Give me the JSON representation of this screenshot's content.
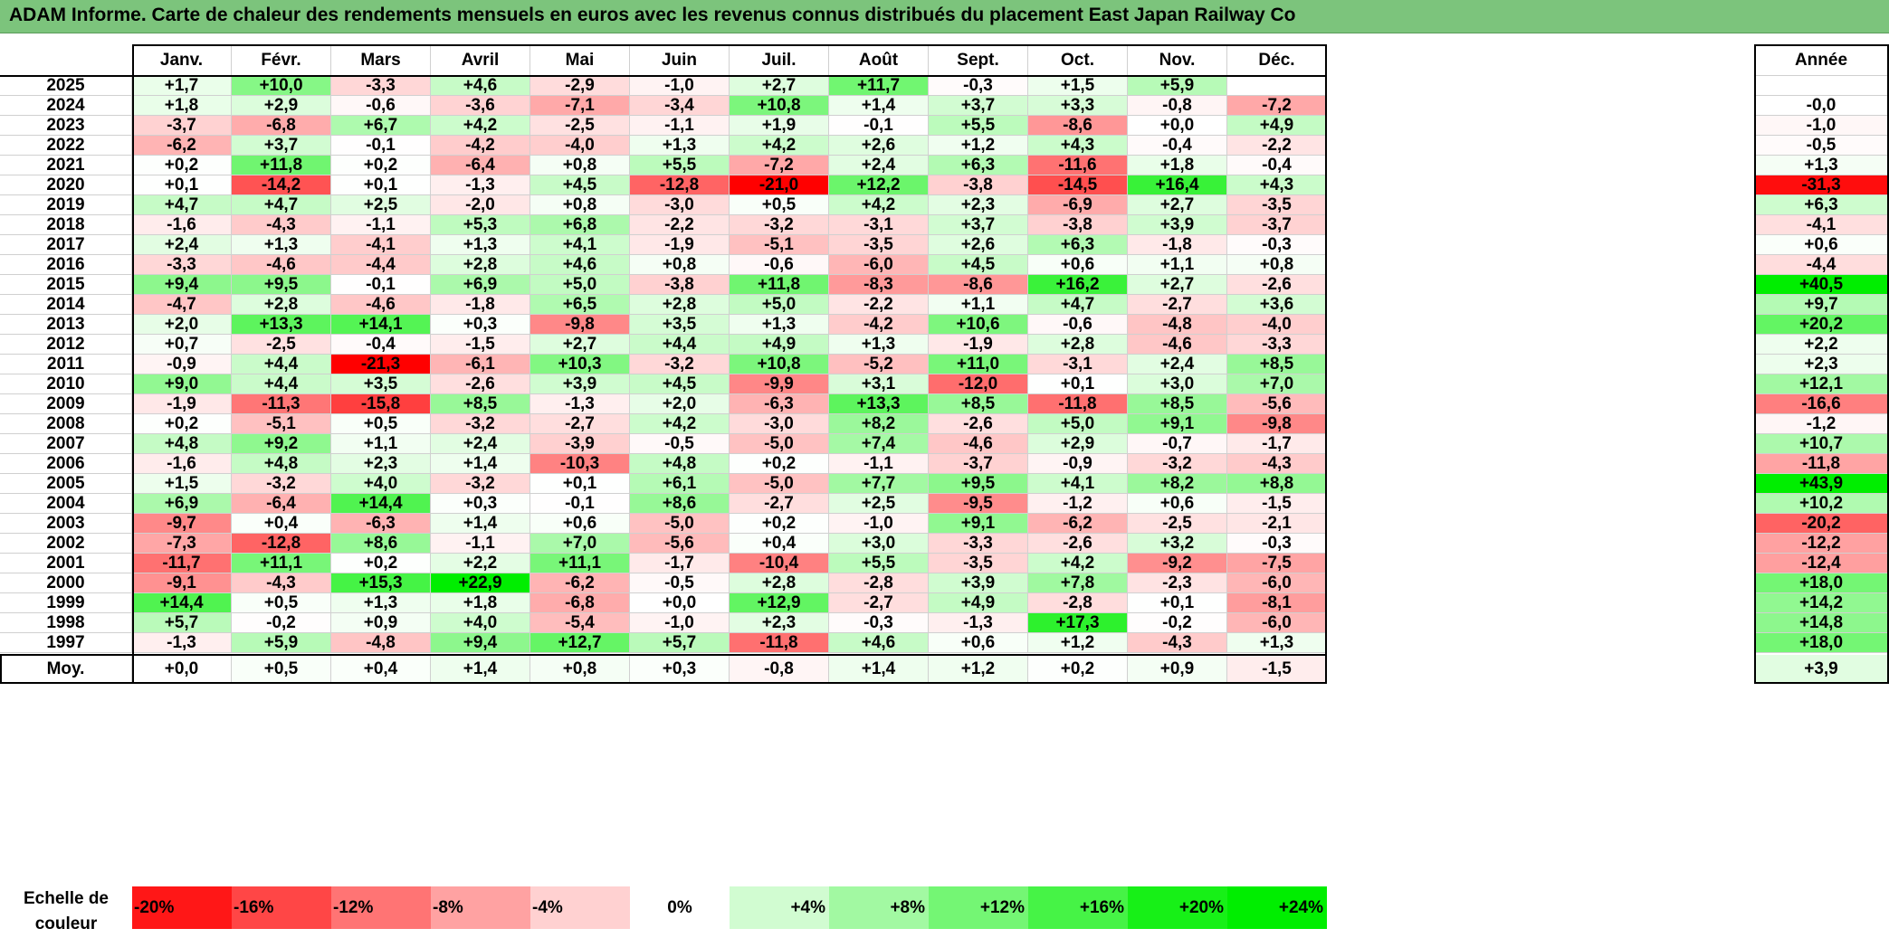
{
  "title": "ADAM Informe. Carte de chaleur des rendements mensuels en euros avec les revenus connus distribués du placement East Japan Railway Co",
  "chart_data": {
    "type": "heatmap",
    "columns": [
      "Janv.",
      "Févr.",
      "Mars",
      "Avril",
      "Mai",
      "Juin",
      "Juil.",
      "Août",
      "Sept.",
      "Oct.",
      "Nov.",
      "Déc."
    ],
    "annual_header": "Année",
    "rows": [
      {
        "year": "2025",
        "values": [
          "+1,7",
          "+10,0",
          "-3,3",
          "+4,6",
          "-2,9",
          "-1,0",
          "+2,7",
          "+11,7",
          "-0,3",
          "+1,5",
          "+5,9",
          ""
        ],
        "annual": ""
      },
      {
        "year": "2024",
        "values": [
          "+1,8",
          "+2,9",
          "-0,6",
          "-3,6",
          "-7,1",
          "-3,4",
          "+10,8",
          "+1,4",
          "+3,7",
          "+3,3",
          "-0,8",
          "-7,2"
        ],
        "annual": "-0,0"
      },
      {
        "year": "2023",
        "values": [
          "-3,7",
          "-6,8",
          "+6,7",
          "+4,2",
          "-2,5",
          "-1,1",
          "+1,9",
          "-0,1",
          "+5,5",
          "-8,6",
          "+0,0",
          "+4,9"
        ],
        "annual": "-1,0"
      },
      {
        "year": "2022",
        "values": [
          "-6,2",
          "+3,7",
          "-0,1",
          "-4,2",
          "-4,0",
          "+1,3",
          "+4,2",
          "+2,6",
          "+1,2",
          "+4,3",
          "-0,4",
          "-2,2"
        ],
        "annual": "-0,5"
      },
      {
        "year": "2021",
        "values": [
          "+0,2",
          "+11,8",
          "+0,2",
          "-6,4",
          "+0,8",
          "+5,5",
          "-7,2",
          "+2,4",
          "+6,3",
          "-11,6",
          "+1,8",
          "-0,4"
        ],
        "annual": "+1,3"
      },
      {
        "year": "2020",
        "values": [
          "+0,1",
          "-14,2",
          "+0,1",
          "-1,3",
          "+4,5",
          "-12,8",
          "-21,0",
          "+12,2",
          "-3,8",
          "-14,5",
          "+16,4",
          "+4,3"
        ],
        "annual": "-31,3"
      },
      {
        "year": "2019",
        "values": [
          "+4,7",
          "+4,7",
          "+2,5",
          "-2,0",
          "+0,8",
          "-3,0",
          "+0,5",
          "+4,2",
          "+2,3",
          "-6,9",
          "+2,7",
          "-3,5"
        ],
        "annual": "+6,3"
      },
      {
        "year": "2018",
        "values": [
          "-1,6",
          "-4,3",
          "-1,1",
          "+5,3",
          "+6,8",
          "-2,2",
          "-3,2",
          "-3,1",
          "+3,7",
          "-3,8",
          "+3,9",
          "-3,7"
        ],
        "annual": "-4,1"
      },
      {
        "year": "2017",
        "values": [
          "+2,4",
          "+1,3",
          "-4,1",
          "+1,3",
          "+4,1",
          "-1,9",
          "-5,1",
          "-3,5",
          "+2,6",
          "+6,3",
          "-1,8",
          "-0,3"
        ],
        "annual": "+0,6"
      },
      {
        "year": "2016",
        "values": [
          "-3,3",
          "-4,6",
          "-4,4",
          "+2,8",
          "+4,6",
          "+0,8",
          "-0,6",
          "-6,0",
          "+4,5",
          "+0,6",
          "+1,1",
          "+0,8"
        ],
        "annual": "-4,4"
      },
      {
        "year": "2015",
        "values": [
          "+9,4",
          "+9,5",
          "-0,1",
          "+6,9",
          "+5,0",
          "-3,8",
          "+11,8",
          "-8,3",
          "-8,6",
          "+16,2",
          "+2,7",
          "-2,6"
        ],
        "annual": "+40,5"
      },
      {
        "year": "2014",
        "values": [
          "-4,7",
          "+2,8",
          "-4,6",
          "-1,8",
          "+6,5",
          "+2,8",
          "+5,0",
          "-2,2",
          "+1,1",
          "+4,7",
          "-2,7",
          "+3,6"
        ],
        "annual": "+9,7"
      },
      {
        "year": "2013",
        "values": [
          "+2,0",
          "+13,3",
          "+14,1",
          "+0,3",
          "-9,8",
          "+3,5",
          "+1,3",
          "-4,2",
          "+10,6",
          "-0,6",
          "-4,8",
          "-4,0"
        ],
        "annual": "+20,2"
      },
      {
        "year": "2012",
        "values": [
          "+0,7",
          "-2,5",
          "-0,4",
          "-1,5",
          "+2,7",
          "+4,4",
          "+4,9",
          "+1,3",
          "-1,9",
          "+2,8",
          "-4,6",
          "-3,3"
        ],
        "annual": "+2,2"
      },
      {
        "year": "2011",
        "values": [
          "-0,9",
          "+4,4",
          "-21,3",
          "-6,1",
          "+10,3",
          "-3,2",
          "+10,8",
          "-5,2",
          "+11,0",
          "-3,1",
          "+2,4",
          "+8,5"
        ],
        "annual": "+2,3"
      },
      {
        "year": "2010",
        "values": [
          "+9,0",
          "+4,4",
          "+3,5",
          "-2,6",
          "+3,9",
          "+4,5",
          "-9,9",
          "+3,1",
          "-12,0",
          "+0,1",
          "+3,0",
          "+7,0"
        ],
        "annual": "+12,1"
      },
      {
        "year": "2009",
        "values": [
          "-1,9",
          "-11,3",
          "-15,8",
          "+8,5",
          "-1,3",
          "+2,0",
          "-6,3",
          "+13,3",
          "+8,5",
          "-11,8",
          "+8,5",
          "-5,6"
        ],
        "annual": "-16,6"
      },
      {
        "year": "2008",
        "values": [
          "+0,2",
          "-5,1",
          "+0,5",
          "-3,2",
          "-2,7",
          "+4,2",
          "-3,0",
          "+8,2",
          "-2,6",
          "+5,0",
          "+9,1",
          "-9,8"
        ],
        "annual": "-1,2"
      },
      {
        "year": "2007",
        "values": [
          "+4,8",
          "+9,2",
          "+1,1",
          "+2,4",
          "-3,9",
          "-0,5",
          "-5,0",
          "+7,4",
          "-4,6",
          "+2,9",
          "-0,7",
          "-1,7"
        ],
        "annual": "+10,7"
      },
      {
        "year": "2006",
        "values": [
          "-1,6",
          "+4,8",
          "+2,3",
          "+1,4",
          "-10,3",
          "+4,8",
          "+0,2",
          "-1,1",
          "-3,7",
          "-0,9",
          "-3,2",
          "-4,3"
        ],
        "annual": "-11,8"
      },
      {
        "year": "2005",
        "values": [
          "+1,5",
          "-3,2",
          "+4,0",
          "-3,2",
          "+0,1",
          "+6,1",
          "-5,0",
          "+7,7",
          "+9,5",
          "+4,1",
          "+8,2",
          "+8,8"
        ],
        "annual": "+43,9"
      },
      {
        "year": "2004",
        "values": [
          "+6,9",
          "-6,4",
          "+14,4",
          "+0,3",
          "-0,1",
          "+8,6",
          "-2,7",
          "+2,5",
          "-9,5",
          "-1,2",
          "+0,6",
          "-1,5"
        ],
        "annual": "+10,2"
      },
      {
        "year": "2003",
        "values": [
          "-9,7",
          "+0,4",
          "-6,3",
          "+1,4",
          "+0,6",
          "-5,0",
          "+0,2",
          "-1,0",
          "+9,1",
          "-6,2",
          "-2,5",
          "-2,1"
        ],
        "annual": "-20,2"
      },
      {
        "year": "2002",
        "values": [
          "-7,3",
          "-12,8",
          "+8,6",
          "-1,1",
          "+7,0",
          "-5,6",
          "+0,4",
          "+3,0",
          "-3,3",
          "-2,6",
          "+3,2",
          "-0,3"
        ],
        "annual": "-12,2"
      },
      {
        "year": "2001",
        "values": [
          "-11,7",
          "+11,1",
          "+0,2",
          "+2,2",
          "+11,1",
          "-1,7",
          "-10,4",
          "+5,5",
          "-3,5",
          "+4,2",
          "-9,2",
          "-7,5"
        ],
        "annual": "-12,4"
      },
      {
        "year": "2000",
        "values": [
          "-9,1",
          "-4,3",
          "+15,3",
          "+22,9",
          "-6,2",
          "-0,5",
          "+2,8",
          "-2,8",
          "+3,9",
          "+7,8",
          "-2,3",
          "-6,0"
        ],
        "annual": "+18,0"
      },
      {
        "year": "1999",
        "values": [
          "+14,4",
          "+0,5",
          "+1,3",
          "+1,8",
          "-6,8",
          "+0,0",
          "+12,9",
          "-2,7",
          "+4,9",
          "-2,8",
          "+0,1",
          "-8,1"
        ],
        "annual": "+14,2"
      },
      {
        "year": "1998",
        "values": [
          "+5,7",
          "-0,2",
          "+0,9",
          "+4,0",
          "-5,4",
          "-1,0",
          "+2,3",
          "-0,3",
          "-1,3",
          "+17,3",
          "-0,2",
          "-6,0"
        ],
        "annual": "+14,8"
      },
      {
        "year": "1997",
        "values": [
          "-1,3",
          "+5,9",
          "-4,8",
          "+9,4",
          "+12,7",
          "+5,7",
          "-11,8",
          "+4,6",
          "+0,6",
          "+1,2",
          "-4,3",
          "+1,3"
        ],
        "annual": "+18,0"
      }
    ],
    "average": {
      "label": "Moy.",
      "values": [
        "+0,0",
        "+0,5",
        "+0,4",
        "+1,4",
        "+0,8",
        "+0,3",
        "-0,8",
        "+1,4",
        "+1,2",
        "+0,2",
        "+0,9",
        "-1,5"
      ],
      "annual": "+3,9"
    },
    "scale": {
      "label_line1": "Echelle de",
      "label_line2": "couleur",
      "items": [
        {
          "label": "-20%",
          "value": -20
        },
        {
          "label": "-16%",
          "value": -16
        },
        {
          "label": "-12%",
          "value": -12
        },
        {
          "label": "-8%",
          "value": -8
        },
        {
          "label": "-4%",
          "value": -4
        },
        {
          "label": "0%",
          "value": 0
        },
        {
          "label": "+4%",
          "value": 4
        },
        {
          "label": "+8%",
          "value": 8
        },
        {
          "label": "+12%",
          "value": 12
        },
        {
          "label": "+16%",
          "value": 16
        },
        {
          "label": "+20%",
          "value": 20
        },
        {
          "label": "+24%",
          "value": 24
        }
      ]
    },
    "colors": {
      "negative": "#ff0000",
      "neutral": "#ffffff",
      "positive": "#00ee00",
      "title_bar": "#7cc47c"
    }
  }
}
